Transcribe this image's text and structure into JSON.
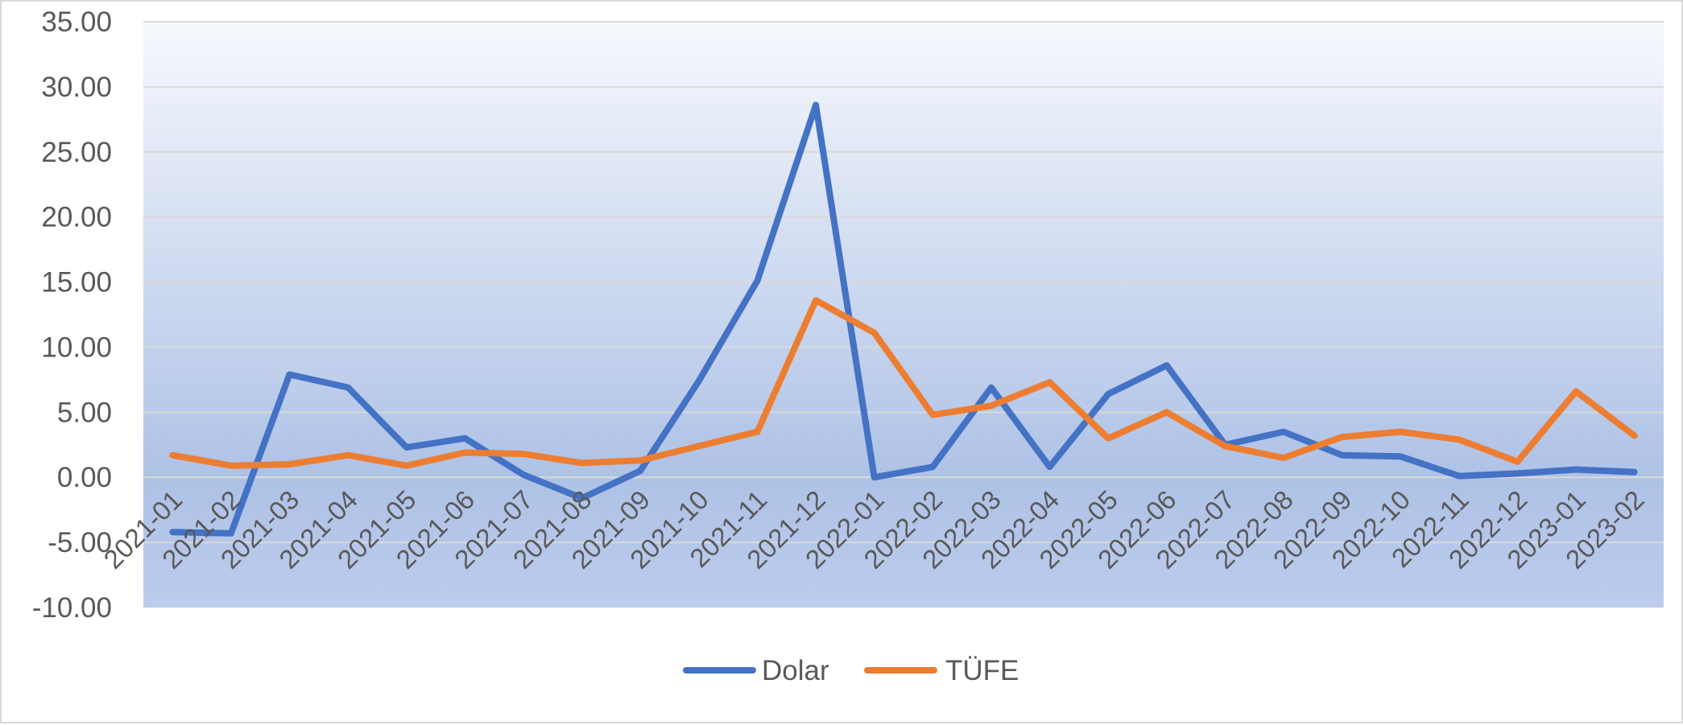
{
  "chart_data": {
    "type": "line",
    "title": "",
    "xlabel": "",
    "ylabel": "",
    "ylim": [
      -10,
      35
    ],
    "ystep": 5,
    "ytick_labels": [
      "-10.00",
      "-5.00",
      "0.00",
      "5.00",
      "10.00",
      "15.00",
      "20.00",
      "25.00",
      "30.00",
      "35.00"
    ],
    "grid": true,
    "legend_position": "bottom",
    "categories": [
      "2021-01",
      "2021-02",
      "2021-03",
      "2021-04",
      "2021-05",
      "2021-06",
      "2021-07",
      "2021-08",
      "2021-09",
      "2021-10",
      "2021-11",
      "2021-12",
      "2022-01",
      "2022-02",
      "2022-03",
      "2022-04",
      "2022-05",
      "2022-06",
      "2022-07",
      "2022-08",
      "2022-09",
      "2022-10",
      "2022-11",
      "2022-12",
      "2023-01",
      "2023-02"
    ],
    "series": [
      {
        "name": "Dolar",
        "color": "#4472c4",
        "values": [
          -4.2,
          -4.3,
          7.9,
          6.9,
          2.3,
          3.0,
          0.2,
          -1.6,
          0.5,
          7.4,
          15.1,
          28.6,
          0.0,
          0.8,
          6.9,
          0.8,
          6.4,
          8.6,
          2.5,
          3.5,
          1.7,
          1.6,
          0.1,
          0.3,
          0.6,
          0.4
        ]
      },
      {
        "name": "TÜFE",
        "color": "#ed7d31",
        "values": [
          1.7,
          0.9,
          1.0,
          1.7,
          0.9,
          1.9,
          1.8,
          1.1,
          1.3,
          2.4,
          3.5,
          13.6,
          11.1,
          4.8,
          5.5,
          7.3,
          3.0,
          5.0,
          2.4,
          1.5,
          3.1,
          3.5,
          2.9,
          1.2,
          6.6,
          3.2
        ]
      }
    ]
  }
}
